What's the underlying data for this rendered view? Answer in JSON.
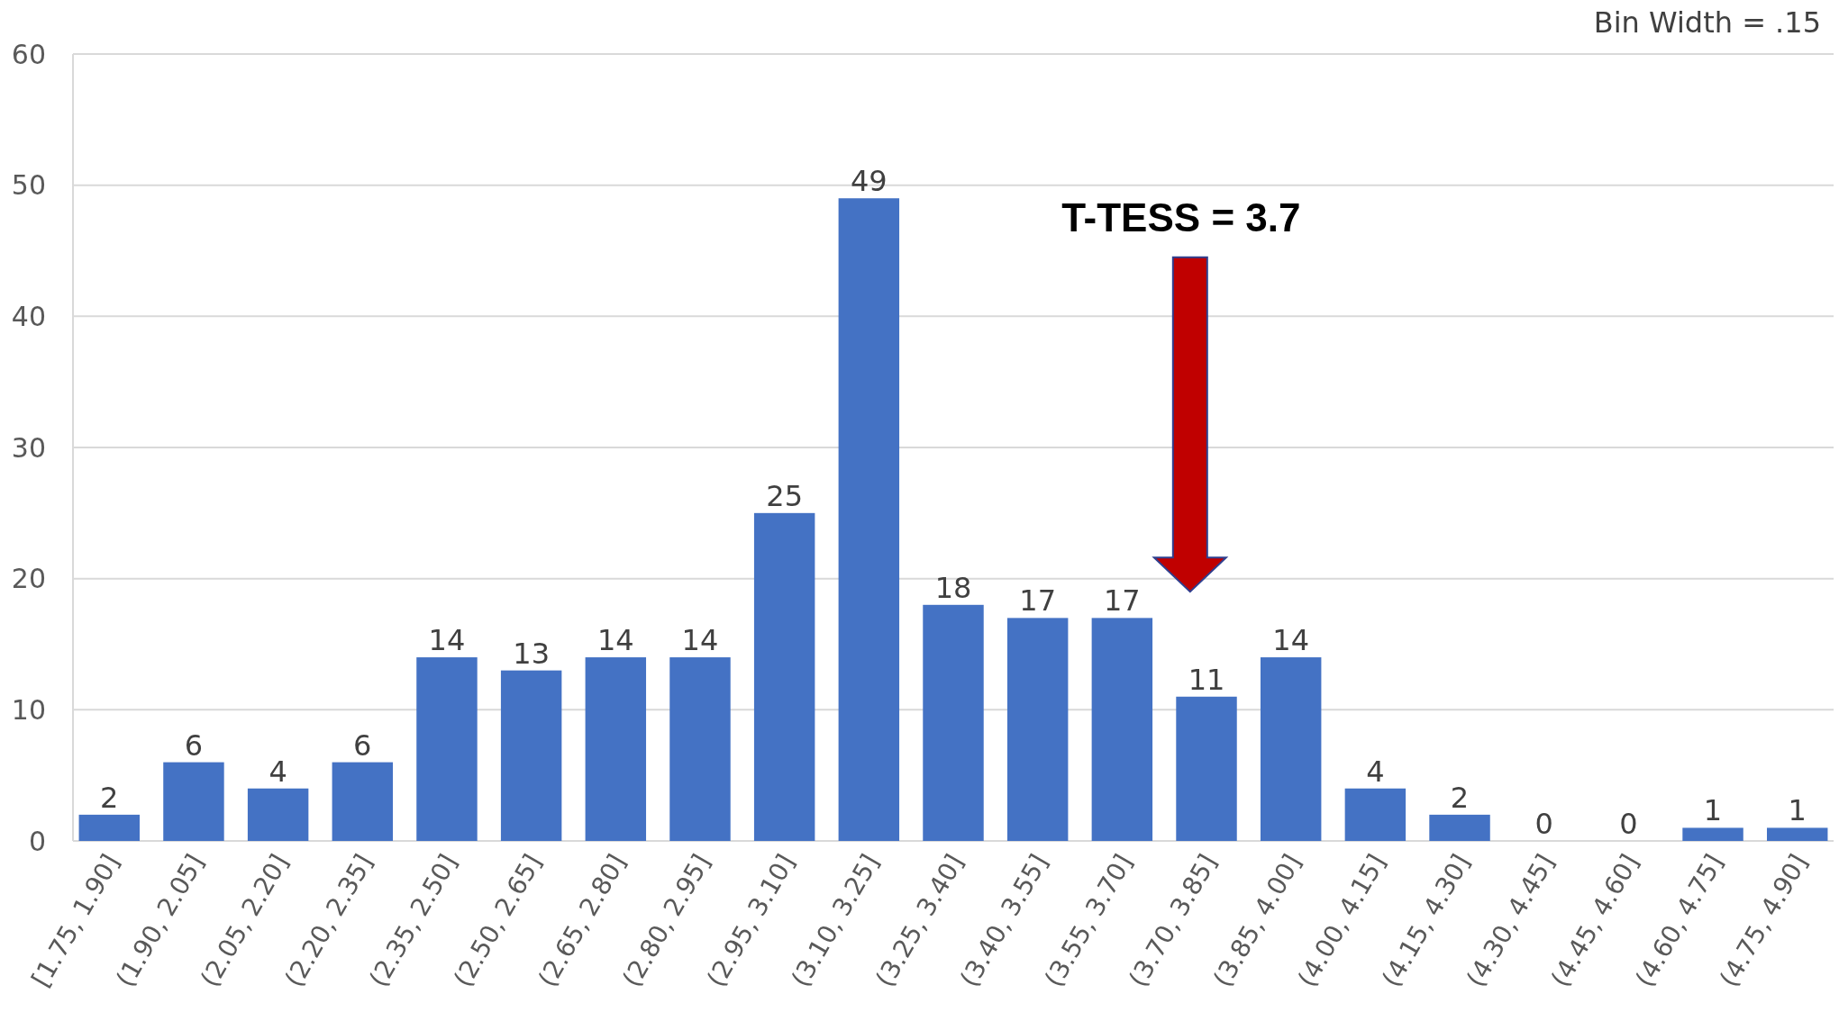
{
  "chart_data": {
    "type": "bar",
    "categories": [
      "[1.75, 1.90]",
      "(1.90, 2.05]",
      "(2.05, 2.20]",
      "(2.20, 2.35]",
      "(2.35, 2.50]",
      "(2.50, 2.65]",
      "(2.65, 2.80]",
      "(2.80, 2.95]",
      "(2.95, 3.10]",
      "(3.10, 3.25]",
      "(3.25, 3.40]",
      "(3.40, 3.55]",
      "(3.55, 3.70]",
      "(3.70, 3.85]",
      "(3.85, 4.00]",
      "(4.00, 4.15]",
      "(4.15, 4.30]",
      "(4.30, 4.45]",
      "(4.45, 4.60]",
      "(4.60, 4.75]",
      "(4.75, 4.90]"
    ],
    "values": [
      2,
      6,
      4,
      6,
      14,
      13,
      14,
      14,
      25,
      49,
      18,
      17,
      17,
      11,
      14,
      4,
      2,
      0,
      0,
      1,
      1
    ],
    "color": "#4472c4",
    "ylim": [
      0,
      60
    ],
    "yticks": [
      0,
      10,
      20,
      30,
      40,
      50,
      60
    ],
    "grid": "y",
    "data_labels": true,
    "annotations": [
      "T-TESS = 3.7",
      "Bin Width = .15"
    ]
  }
}
